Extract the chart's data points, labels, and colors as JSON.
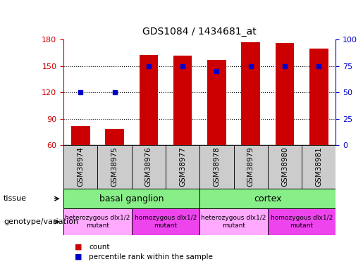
{
  "title": "GDS1084 / 1434681_at",
  "samples": [
    "GSM38974",
    "GSM38975",
    "GSM38976",
    "GSM38977",
    "GSM38978",
    "GSM38979",
    "GSM38980",
    "GSM38981"
  ],
  "bar_heights": [
    82,
    79,
    163,
    162,
    157,
    177,
    176,
    170
  ],
  "percentile_ranks": [
    50,
    50,
    75,
    75,
    70,
    75,
    75,
    75
  ],
  "ylim_left": [
    60,
    180
  ],
  "ylim_right": [
    0,
    100
  ],
  "yticks_left": [
    60,
    90,
    120,
    150,
    180
  ],
  "yticks_right": [
    0,
    25,
    50,
    75,
    100
  ],
  "bar_color": "#cc0000",
  "dot_color": "#0000cc",
  "tissue_groups": [
    {
      "label": "basal ganglion",
      "start": 0,
      "end": 4,
      "color": "#88ee88"
    },
    {
      "label": "cortex",
      "start": 4,
      "end": 8,
      "color": "#88ee88"
    }
  ],
  "genotype_groups": [
    {
      "label": "heterozygous dlx1/2\nmutant",
      "start": 0,
      "end": 2,
      "color": "#ffaaff"
    },
    {
      "label": "homozygous dlx1/2\nmutant",
      "start": 2,
      "end": 4,
      "color": "#ee44ee"
    },
    {
      "label": "heterozygous dlx1/2\nmutant",
      "start": 4,
      "end": 6,
      "color": "#ffaaff"
    },
    {
      "label": "homozygous dlx1/2\nmutant",
      "start": 6,
      "end": 8,
      "color": "#ee44ee"
    }
  ],
  "legend_items": [
    {
      "color": "#cc0000",
      "label": "count"
    },
    {
      "color": "#0000cc",
      "label": "percentile rank within the sample"
    }
  ],
  "sample_cell_color": "#cccccc",
  "row_border_color": "#000000"
}
